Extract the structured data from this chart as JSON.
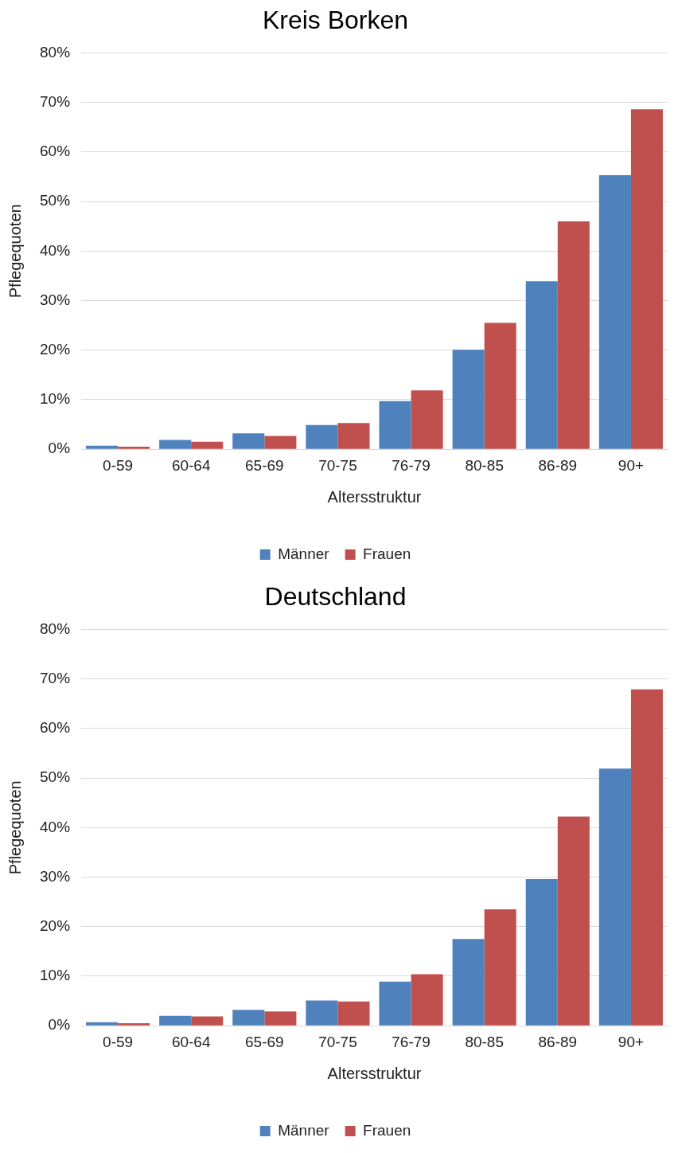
{
  "chart_data": [
    {
      "type": "bar",
      "title": "Kreis Borken",
      "xlabel": "Altersstruktur",
      "ylabel": "Pflegequoten",
      "categories": [
        "0-59",
        "60-64",
        "65-69",
        "70-75",
        "76-79",
        "80-85",
        "86-89",
        "90+"
      ],
      "series": [
        {
          "name": "Männer",
          "color": "#4f81bd",
          "values": [
            0.7,
            1.9,
            3.2,
            4.9,
            9.7,
            20.1,
            33.9,
            55.3
          ]
        },
        {
          "name": "Frauen",
          "color": "#c0504d",
          "values": [
            0.5,
            1.5,
            2.7,
            5.3,
            11.9,
            25.5,
            46.0,
            68.6
          ]
        }
      ],
      "ylim": [
        0,
        80
      ],
      "yticks": [
        {
          "value": 0,
          "label": "0%"
        },
        {
          "value": 10,
          "label": "10%"
        },
        {
          "value": 20,
          "label": "20%"
        },
        {
          "value": 30,
          "label": "30%"
        },
        {
          "value": 40,
          "label": "40%"
        },
        {
          "value": 50,
          "label": "50%"
        },
        {
          "value": 60,
          "label": "60%"
        },
        {
          "value": 70,
          "label": "70%"
        },
        {
          "value": 80,
          "label": "80%"
        }
      ],
      "grid": "y",
      "legend": "bottom"
    },
    {
      "type": "bar",
      "title": "Deutschland",
      "xlabel": "Altersstruktur",
      "ylabel": "Pflegequoten",
      "categories": [
        "0-59",
        "60-64",
        "65-69",
        "70-75",
        "76-79",
        "80-85",
        "86-89",
        "90+"
      ],
      "series": [
        {
          "name": "Männer",
          "color": "#4f81bd",
          "values": [
            0.7,
            2.0,
            3.2,
            5.1,
            8.9,
            17.5,
            29.6,
            51.9
          ]
        },
        {
          "name": "Frauen",
          "color": "#c0504d",
          "values": [
            0.5,
            1.9,
            2.9,
            4.9,
            10.4,
            23.5,
            42.2,
            67.9
          ]
        }
      ],
      "ylim": [
        0,
        80
      ],
      "yticks": [
        {
          "value": 0,
          "label": "0%"
        },
        {
          "value": 10,
          "label": "10%"
        },
        {
          "value": 20,
          "label": "20%"
        },
        {
          "value": 30,
          "label": "30%"
        },
        {
          "value": 40,
          "label": "40%"
        },
        {
          "value": 50,
          "label": "50%"
        },
        {
          "value": 60,
          "label": "60%"
        },
        {
          "value": 70,
          "label": "70%"
        },
        {
          "value": 80,
          "label": "80%"
        }
      ],
      "grid": "y",
      "legend": "bottom"
    }
  ]
}
